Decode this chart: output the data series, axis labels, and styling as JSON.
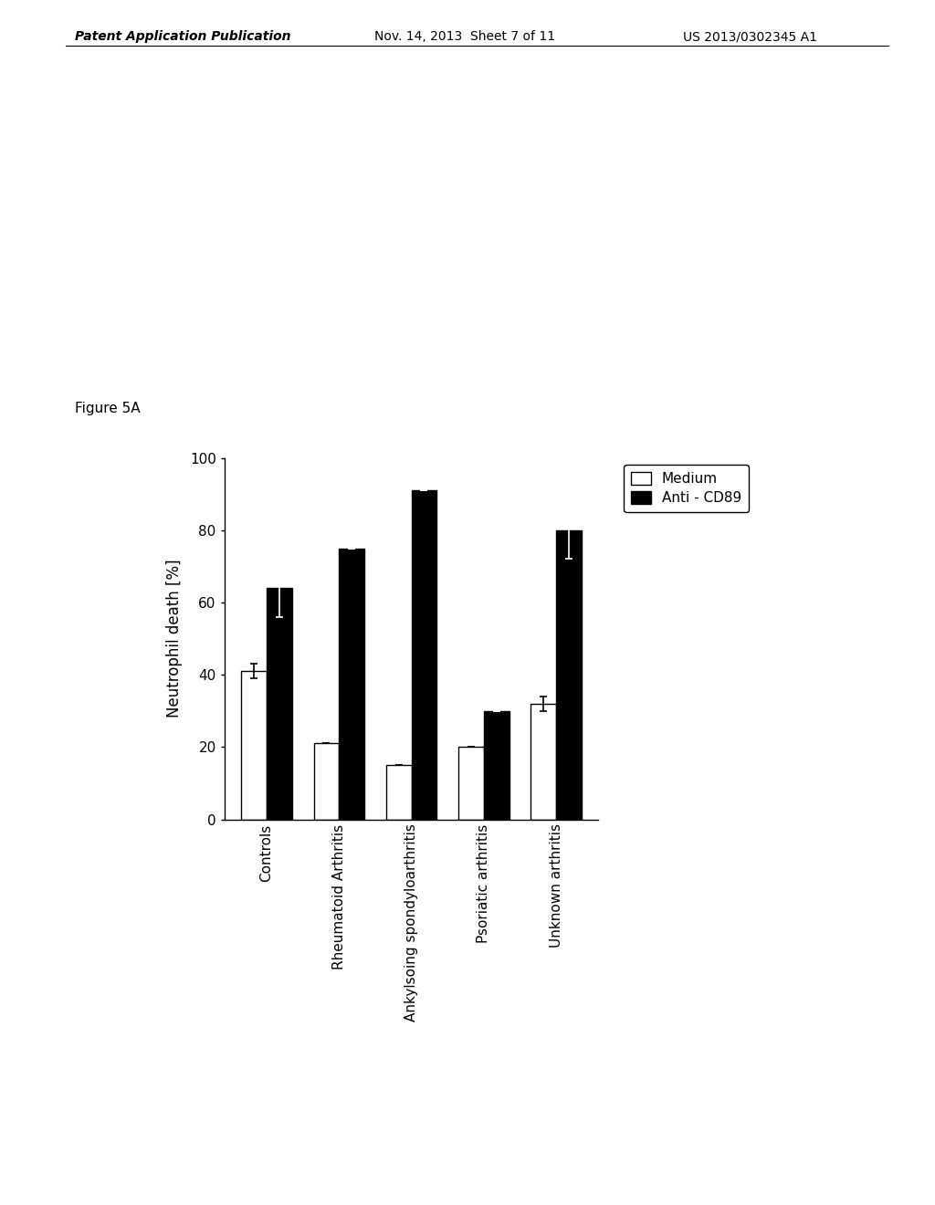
{
  "categories": [
    "Controls",
    "Rheumatoid Arthritis",
    "Ankylsoing spondyloarthritis",
    "Psoriatic arthritis",
    "Unknown arthritis"
  ],
  "medium_values": [
    41,
    21,
    15,
    20,
    32
  ],
  "anticd89_values": [
    64,
    75,
    91,
    30,
    80
  ],
  "medium_errors": [
    2,
    0,
    0,
    0,
    2
  ],
  "anticd89_errors": [
    8,
    0,
    0,
    0,
    8
  ],
  "ylabel": "Neutrophil death [%]",
  "ylim": [
    0,
    100
  ],
  "yticks": [
    0,
    20,
    40,
    60,
    80,
    100
  ],
  "legend_medium": "Medium",
  "legend_anticd89": "Anti - CD89",
  "figure_label": "Figure 5A",
  "bar_width": 0.35,
  "medium_color": "#ffffff",
  "anticd89_color": "#000000",
  "bar_edgecolor": "#000000",
  "background_color": "#ffffff",
  "label_fontsize": 12,
  "tick_fontsize": 11,
  "legend_fontsize": 11,
  "figure_label_fontsize": 11,
  "header_fontsize": 10,
  "header_left": "Patent Application Publication",
  "header_mid": "Nov. 14, 2013  Sheet 7 of 11",
  "header_right": "US 2013/0302345 A1"
}
